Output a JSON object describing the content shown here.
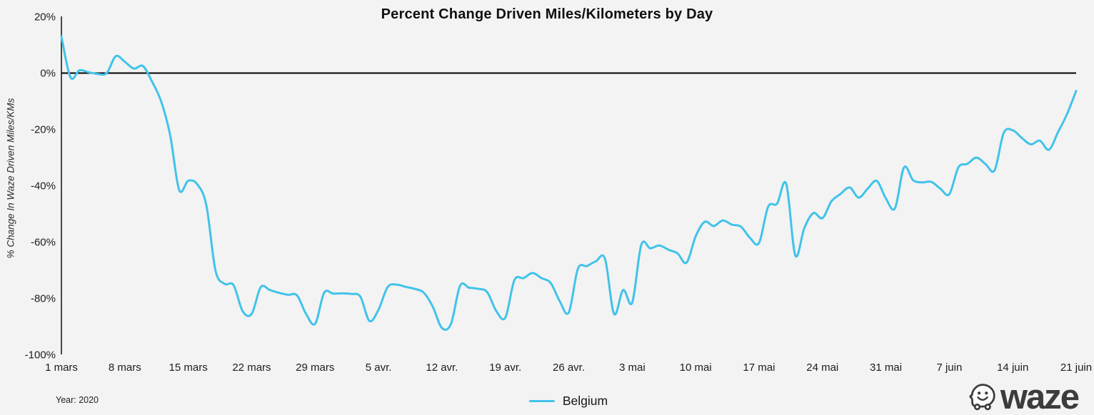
{
  "title": "Percent Change Driven Miles/Kilometers by Day",
  "y_axis": {
    "label": "% Change In Waze Driven Miles/KMs",
    "ticks": [
      "20%",
      "0%",
      "-20%",
      "-40%",
      "-60%",
      "-80%",
      "-100%"
    ],
    "tick_values": [
      20,
      0,
      -20,
      -40,
      -60,
      -80,
      -100
    ]
  },
  "x_axis": {
    "ticks": [
      "1 mars",
      "8 mars",
      "15 mars",
      "22 mars",
      "29 mars",
      "5 avr.",
      "12 avr.",
      "19 avr.",
      "26 avr.",
      "3 mai",
      "10 mai",
      "17 mai",
      "24 mai",
      "31 mai",
      "7 juin",
      "14 juin",
      "21 juin"
    ]
  },
  "footer": {
    "year_label": "Year: 2020",
    "legend": {
      "series_label": "Belgium",
      "line_color": "#41c3e9"
    },
    "brand": "waze",
    "brand_color": "#3c3c3c"
  },
  "chart_data": {
    "type": "line",
    "title": "Percent Change Driven Miles/Kilometers by Day",
    "xlabel": "",
    "ylabel": "% Change In Waze Driven Miles/KMs",
    "ylim": [
      -100,
      20
    ],
    "ytick_interval": 20,
    "xtick_labels": [
      "1 mars",
      "8 mars",
      "15 mars",
      "22 mars",
      "29 mars",
      "5 avr.",
      "12 avr.",
      "19 avr.",
      "26 avr.",
      "3 mai",
      "10 mai",
      "17 mai",
      "24 mai",
      "31 mai",
      "7 juin",
      "14 juin",
      "21 juin"
    ],
    "grid": false,
    "zero_line": true,
    "smoothing": true,
    "legend_position": "bottom-center",
    "series": [
      {
        "name": "Belgium",
        "color": "#41c3e9",
        "x": [
          "1 mars",
          "2 mars",
          "3 mars",
          "4 mars",
          "5 mars",
          "6 mars",
          "7 mars",
          "8 mars",
          "9 mars",
          "10 mars",
          "11 mars",
          "12 mars",
          "13 mars",
          "14 mars",
          "15 mars",
          "16 mars",
          "17 mars",
          "18 mars",
          "19 mars",
          "20 mars",
          "21 mars",
          "22 mars",
          "23 mars",
          "24 mars",
          "25 mars",
          "26 mars",
          "27 mars",
          "28 mars",
          "29 mars",
          "30 mars",
          "31 mars",
          "1 avr.",
          "2 avr.",
          "3 avr.",
          "4 avr.",
          "5 avr.",
          "6 avr.",
          "7 avr.",
          "8 avr.",
          "9 avr.",
          "10 avr.",
          "11 avr.",
          "12 avr.",
          "13 avr.",
          "14 avr.",
          "15 avr.",
          "16 avr.",
          "17 avr.",
          "18 avr.",
          "19 avr.",
          "20 avr.",
          "21 avr.",
          "22 avr.",
          "23 avr.",
          "24 avr.",
          "25 avr.",
          "26 avr.",
          "27 avr.",
          "28 avr.",
          "29 avr.",
          "30 avr.",
          "1 mai",
          "2 mai",
          "3 mai",
          "4 mai",
          "5 mai",
          "6 mai",
          "7 mai",
          "8 mai",
          "9 mai",
          "10 mai",
          "11 mai",
          "12 mai",
          "13 mai",
          "14 mai",
          "15 mai",
          "16 mai",
          "17 mai",
          "18 mai",
          "19 mai",
          "20 mai",
          "21 mai",
          "22 mai",
          "23 mai",
          "24 mai",
          "25 mai",
          "26 mai",
          "27 mai",
          "28 mai",
          "29 mai",
          "30 mai",
          "31 mai",
          "1 juin",
          "2 juin",
          "3 juin",
          "4 juin",
          "5 juin",
          "6 juin",
          "7 juin",
          "8 juin",
          "9 juin",
          "10 juin",
          "11 juin",
          "12 juin",
          "13 juin",
          "14 juin",
          "15 juin",
          "16 juin",
          "17 juin",
          "18 juin",
          "19 juin",
          "20 juin",
          "21 juin"
        ],
        "y": [
          13,
          -1.5,
          1,
          0.3,
          -0.3,
          0,
          6,
          4,
          1.6,
          2.5,
          -3,
          -10,
          -22,
          -41.5,
          -38.2,
          -39.5,
          -47,
          -70,
          -74.8,
          -75.3,
          -84.5,
          -85.5,
          -76,
          -77,
          -78,
          -78.7,
          -78.9,
          -85.5,
          -89,
          -78,
          -78.3,
          -78.2,
          -78.4,
          -79.4,
          -88,
          -84,
          -76,
          -75.1,
          -75.9,
          -76.6,
          -78,
          -83,
          -90.5,
          -89,
          -75.5,
          -76.2,
          -76.6,
          -77.8,
          -84.5,
          -86.8,
          -73.5,
          -72.8,
          -71,
          -72.8,
          -74.5,
          -81,
          -85,
          -69.5,
          -68.5,
          -66.8,
          -66,
          -85.5,
          -77,
          -81.5,
          -61,
          -62.2,
          -61.2,
          -62.7,
          -64,
          -67.3,
          -58,
          -52.8,
          -54.3,
          -52.3,
          -53.8,
          -54.5,
          -58.5,
          -60.3,
          -47.5,
          -46.3,
          -39.3,
          -64.7,
          -55,
          -49.7,
          -51.5,
          -45.5,
          -42.9,
          -40.6,
          -44.2,
          -41,
          -38.3,
          -44.5,
          -48,
          -33.5,
          -38,
          -38.8,
          -38.6,
          -41,
          -43,
          -33.5,
          -32.2,
          -30,
          -32.3,
          -34.5,
          -21.3,
          -20.3,
          -23,
          -25.3,
          -24,
          -27.2,
          -21,
          -14.5,
          -6.3
        ]
      }
    ]
  }
}
